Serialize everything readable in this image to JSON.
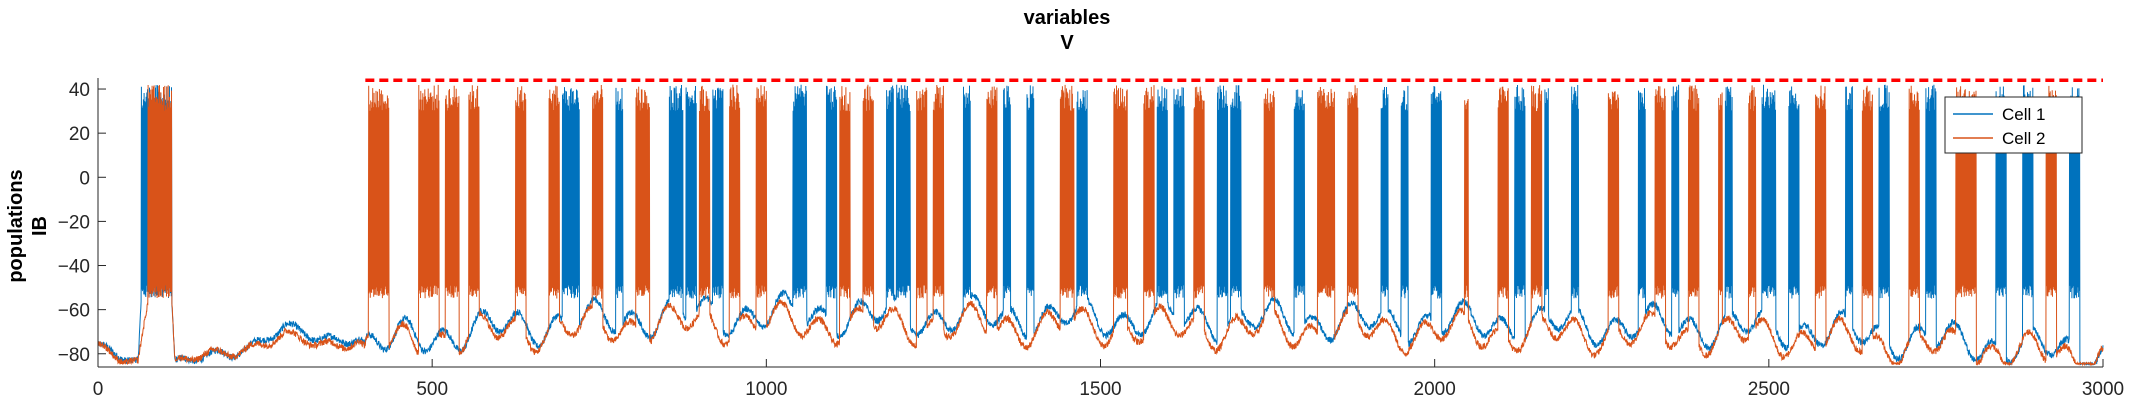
{
  "chart_data": {
    "type": "line",
    "title": [
      "variables",
      "V"
    ],
    "ylabel": [
      "populations",
      "IB"
    ],
    "xlabel": "",
    "xlim": [
      0,
      3000
    ],
    "ylim": [
      -86,
      45
    ],
    "xticks": [
      0,
      500,
      1000,
      1500,
      2000,
      2500,
      3000
    ],
    "yticks": [
      -80,
      -60,
      -40,
      -20,
      0,
      20,
      40
    ],
    "grid": false,
    "legend_position": "top-right",
    "colors": {
      "cell1": "#0072BD",
      "cell2": "#D95319",
      "threshold": "#FF0000"
    },
    "series": [
      {
        "name": "Cell 1",
        "baseline": [
          [
            0,
            -78
          ],
          [
            40,
            -82
          ],
          [
            60,
            -84
          ],
          [
            65,
            -55
          ],
          [
            110,
            -55
          ],
          [
            115,
            -84
          ],
          [
            200,
            -80
          ],
          [
            280,
            -68
          ],
          [
            330,
            -74
          ],
          [
            390,
            -72
          ],
          [
            400,
            -76
          ],
          [
            600,
            -68
          ],
          [
            900,
            -62
          ],
          [
            1500,
            -64
          ],
          [
            2000,
            -66
          ],
          [
            2500,
            -68
          ],
          [
            3000,
            -80
          ]
        ],
        "bursts": [
          [
            65,
            110
          ],
          [
            695,
            720
          ],
          [
            775,
            785
          ],
          [
            855,
            875
          ],
          [
            880,
            895
          ],
          [
            920,
            935
          ],
          [
            1040,
            1060
          ],
          [
            1090,
            1105
          ],
          [
            1180,
            1190
          ],
          [
            1195,
            1215
          ],
          [
            1295,
            1305
          ],
          [
            1355,
            1365
          ],
          [
            1390,
            1400
          ],
          [
            1465,
            1480
          ],
          [
            1585,
            1600
          ],
          [
            1610,
            1625
          ],
          [
            1675,
            1690
          ],
          [
            1695,
            1710
          ],
          [
            1790,
            1805
          ],
          [
            1920,
            1930
          ],
          [
            1950,
            1960
          ],
          [
            1995,
            2010
          ],
          [
            2120,
            2135
          ],
          [
            2165,
            2170
          ],
          [
            2205,
            2215
          ],
          [
            2305,
            2315
          ],
          [
            2355,
            2365
          ],
          [
            2435,
            2445
          ],
          [
            2490,
            2510
          ],
          [
            2530,
            2545
          ],
          [
            2615,
            2625
          ],
          [
            2665,
            2680
          ],
          [
            2735,
            2750
          ],
          [
            2840,
            2855
          ],
          [
            2880,
            2895
          ],
          [
            2950,
            2965
          ]
        ]
      },
      {
        "name": "Cell 2",
        "baseline": [
          [
            0,
            -78
          ],
          [
            40,
            -83
          ],
          [
            60,
            -84
          ],
          [
            75,
            -55
          ],
          [
            110,
            -55
          ],
          [
            115,
            -84
          ],
          [
            200,
            -79
          ],
          [
            280,
            -72
          ],
          [
            330,
            -76
          ],
          [
            390,
            -74
          ],
          [
            400,
            -78
          ],
          [
            600,
            -70
          ],
          [
            900,
            -66
          ],
          [
            1500,
            -68
          ],
          [
            2000,
            -70
          ],
          [
            2500,
            -72
          ],
          [
            3000,
            -82
          ]
        ],
        "bursts": [
          [
            75,
            110
          ],
          [
            405,
            435
          ],
          [
            480,
            510
          ],
          [
            520,
            540
          ],
          [
            555,
            570
          ],
          [
            625,
            640
          ],
          [
            675,
            690
          ],
          [
            740,
            755
          ],
          [
            805,
            825
          ],
          [
            900,
            915
          ],
          [
            945,
            960
          ],
          [
            985,
            1000
          ],
          [
            1110,
            1125
          ],
          [
            1145,
            1160
          ],
          [
            1225,
            1240
          ],
          [
            1250,
            1265
          ],
          [
            1330,
            1345
          ],
          [
            1440,
            1460
          ],
          [
            1520,
            1540
          ],
          [
            1565,
            1580
          ],
          [
            1640,
            1655
          ],
          [
            1745,
            1760
          ],
          [
            1825,
            1850
          ],
          [
            1870,
            1885
          ],
          [
            2045,
            2050
          ],
          [
            2095,
            2110
          ],
          [
            2145,
            2160
          ],
          [
            2260,
            2275
          ],
          [
            2330,
            2345
          ],
          [
            2380,
            2395
          ],
          [
            2425,
            2430
          ],
          [
            2470,
            2480
          ],
          [
            2570,
            2585
          ],
          [
            2640,
            2655
          ],
          [
            2710,
            2725
          ],
          [
            2780,
            2810
          ],
          [
            2915,
            2930
          ]
        ]
      }
    ],
    "reference_line": {
      "y": 44,
      "x_start": 400,
      "x_end": 3000,
      "style": "dashed"
    }
  }
}
